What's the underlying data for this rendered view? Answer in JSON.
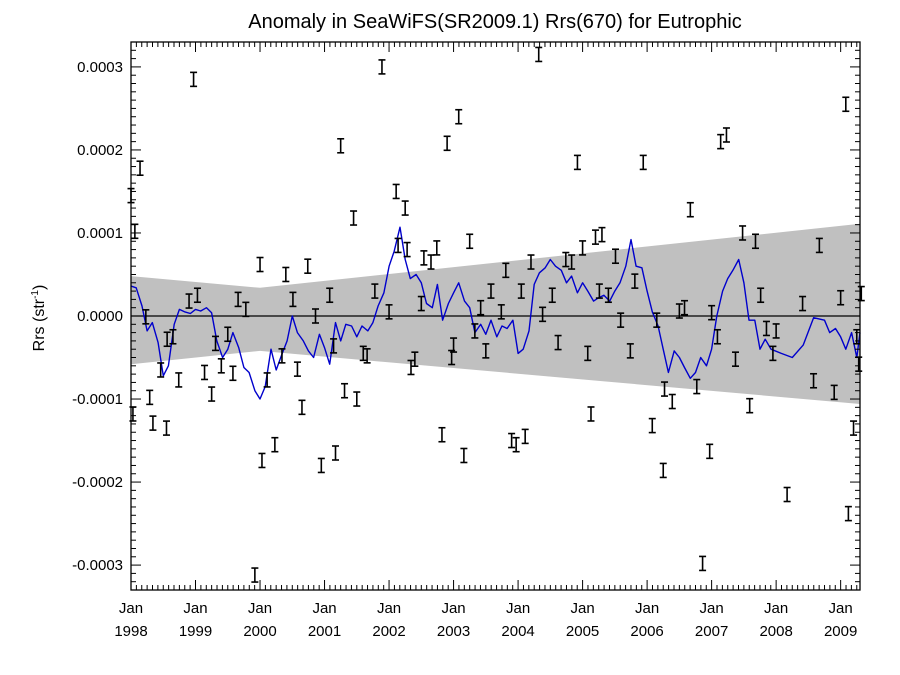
{
  "chart_data": {
    "type": "line",
    "title": "Anomaly in SeaWiFS(SR2009.1) Rrs(670) for Eutrophic",
    "ylabel": "Rrs (str",
    "ylabel_sup": "-1",
    "ylabel_close": ")",
    "xlim": [
      1998.0,
      2009.3
    ],
    "ylim": [
      -0.00033,
      0.00033
    ],
    "yticks": [
      {
        "value": 0.0003,
        "label": "0.0003"
      },
      {
        "value": 0.0002,
        "label": "0.0002"
      },
      {
        "value": 0.0001,
        "label": "0.0001"
      },
      {
        "value": 0.0,
        "label": "0.0000"
      },
      {
        "value": -0.0001,
        "label": "-0.0001"
      },
      {
        "value": -0.0002,
        "label": "-0.0002"
      },
      {
        "value": -0.0003,
        "label": "-0.0003"
      }
    ],
    "xticks": [
      {
        "value": 1998,
        "month": "Jan",
        "year": "1998"
      },
      {
        "value": 1999,
        "month": "Jan",
        "year": "1999"
      },
      {
        "value": 2000,
        "month": "Jan",
        "year": "2000"
      },
      {
        "value": 2001,
        "month": "Jan",
        "year": "2001"
      },
      {
        "value": 2002,
        "month": "Jan",
        "year": "2002"
      },
      {
        "value": 2003,
        "month": "Jan",
        "year": "2003"
      },
      {
        "value": 2004,
        "month": "Jan",
        "year": "2004"
      },
      {
        "value": 2005,
        "month": "Jan",
        "year": "2005"
      },
      {
        "value": 2006,
        "month": "Jan",
        "year": "2006"
      },
      {
        "value": 2007,
        "month": "Jan",
        "year": "2007"
      },
      {
        "value": 2008,
        "month": "Jan",
        "year": "2008"
      },
      {
        "value": 2009,
        "month": "Jan",
        "year": "2009"
      }
    ],
    "zero_line": 0.0,
    "band": {
      "color": "#c0c0c0",
      "upper": [
        [
          1998.0,
          4.8e-05
        ],
        [
          2000.0,
          3.4e-05
        ],
        [
          2009.3,
          0.000111
        ]
      ],
      "lower": [
        [
          1998.0,
          -5.8e-05
        ],
        [
          2000.0,
          -4.2e-05
        ],
        [
          2009.3,
          -0.000106
        ]
      ]
    },
    "series": [
      {
        "color": "#0000cc",
        "points": [
          [
            1998.0,
            3.6e-05
          ],
          [
            1998.08,
            3.4e-05
          ],
          [
            1998.17,
            1.2e-05
          ],
          [
            1998.25,
            -1.8e-05
          ],
          [
            1998.33,
            -8e-06
          ],
          [
            1998.42,
            -3.2e-05
          ],
          [
            1998.5,
            -7.2e-05
          ],
          [
            1998.58,
            -6e-05
          ],
          [
            1998.67,
            -1e-05
          ],
          [
            1998.75,
            8e-06
          ],
          [
            1998.83,
            5e-06
          ],
          [
            1998.92,
            3e-06
          ],
          [
            1999.0,
            8e-06
          ],
          [
            1999.08,
            6e-06
          ],
          [
            1999.17,
            1e-05
          ],
          [
            1999.25,
            4e-06
          ],
          [
            1999.33,
            -3e-05
          ],
          [
            1999.42,
            -5e-05
          ],
          [
            1999.5,
            -4e-05
          ],
          [
            1999.58,
            -2e-05
          ],
          [
            1999.67,
            -3.8e-05
          ],
          [
            1999.75,
            -6.2e-05
          ],
          [
            1999.83,
            -6.8e-05
          ],
          [
            1999.92,
            -9e-05
          ],
          [
            2000.0,
            -0.0001
          ],
          [
            2000.08,
            -8.5e-05
          ],
          [
            2000.17,
            -4e-05
          ],
          [
            2000.25,
            -6.5e-05
          ],
          [
            2000.33,
            -4.8e-05
          ],
          [
            2000.42,
            -3e-05
          ],
          [
            2000.5,
            0.0
          ],
          [
            2000.58,
            -2e-05
          ],
          [
            2000.67,
            -3e-05
          ],
          [
            2000.75,
            -4.2e-05
          ],
          [
            2000.83,
            -5e-05
          ],
          [
            2000.92,
            -2.2e-05
          ],
          [
            2001.0,
            -3.8e-05
          ],
          [
            2001.08,
            -5.8e-05
          ],
          [
            2001.17,
            -8e-06
          ],
          [
            2001.25,
            -3e-05
          ],
          [
            2001.33,
            -1e-05
          ],
          [
            2001.42,
            -1.2e-05
          ],
          [
            2001.5,
            -2.5e-05
          ],
          [
            2001.58,
            -1.2e-05
          ],
          [
            2001.67,
            -1.8e-05
          ],
          [
            2001.75,
            -8e-06
          ],
          [
            2001.83,
            1.2e-05
          ],
          [
            2001.92,
            2.8e-05
          ],
          [
            2002.0,
            6e-05
          ],
          [
            2002.08,
            7.8e-05
          ],
          [
            2002.17,
            0.000107
          ],
          [
            2002.25,
            6.8e-05
          ],
          [
            2002.33,
            4.5e-05
          ],
          [
            2002.42,
            5e-05
          ],
          [
            2002.5,
            4e-05
          ],
          [
            2002.58,
            1.5e-05
          ],
          [
            2002.67,
            1e-05
          ],
          [
            2002.75,
            3.8e-05
          ],
          [
            2002.83,
            -5e-06
          ],
          [
            2002.92,
            1.5e-05
          ],
          [
            2003.0,
            2.8e-05
          ],
          [
            2003.08,
            4e-05
          ],
          [
            2003.17,
            1.8e-05
          ],
          [
            2003.25,
            1e-05
          ],
          [
            2003.33,
            -2e-05
          ],
          [
            2003.42,
            -1e-05
          ],
          [
            2003.5,
            -2.2e-05
          ],
          [
            2003.58,
            -5e-06
          ],
          [
            2003.67,
            -2.5e-05
          ],
          [
            2003.75,
            -1.2e-05
          ],
          [
            2003.83,
            -1.5e-05
          ],
          [
            2003.92,
            -5e-06
          ],
          [
            2004.0,
            -4.5e-05
          ],
          [
            2004.08,
            -4e-05
          ],
          [
            2004.17,
            -1.8e-05
          ],
          [
            2004.25,
            3.8e-05
          ],
          [
            2004.33,
            5.2e-05
          ],
          [
            2004.42,
            5.8e-05
          ],
          [
            2004.5,
            6.8e-05
          ],
          [
            2004.58,
            6e-05
          ],
          [
            2004.67,
            5.5e-05
          ],
          [
            2004.75,
            4e-05
          ],
          [
            2004.83,
            4.8e-05
          ],
          [
            2004.92,
            2.8e-05
          ],
          [
            2005.0,
            4e-05
          ],
          [
            2005.08,
            3e-05
          ],
          [
            2005.17,
            1.8e-05
          ],
          [
            2005.25,
            2.2e-05
          ],
          [
            2005.33,
            2.5e-05
          ],
          [
            2005.42,
            1.8e-05
          ],
          [
            2005.5,
            3e-05
          ],
          [
            2005.58,
            4e-05
          ],
          [
            2005.67,
            6e-05
          ],
          [
            2005.75,
            9.2e-05
          ],
          [
            2005.83,
            6e-05
          ],
          [
            2005.92,
            5.8e-05
          ],
          [
            2006.0,
            3e-05
          ],
          [
            2006.08,
            5e-06
          ],
          [
            2006.17,
            -1.2e-05
          ],
          [
            2006.25,
            -4e-05
          ],
          [
            2006.33,
            -6.8e-05
          ],
          [
            2006.42,
            -4.2e-05
          ],
          [
            2006.5,
            -5e-05
          ],
          [
            2006.58,
            -6.2e-05
          ],
          [
            2006.67,
            -7.5e-05
          ],
          [
            2006.75,
            -6.8e-05
          ],
          [
            2006.83,
            -5e-05
          ],
          [
            2006.92,
            -6e-05
          ],
          [
            2007.0,
            -4e-05
          ],
          [
            2007.08,
            0.0
          ],
          [
            2007.17,
            3e-05
          ],
          [
            2007.25,
            4.5e-05
          ],
          [
            2007.33,
            5.5e-05
          ],
          [
            2007.42,
            6.8e-05
          ],
          [
            2007.5,
            4e-05
          ],
          [
            2007.58,
            -5e-06
          ],
          [
            2007.67,
            -5e-06
          ],
          [
            2007.75,
            -4e-05
          ],
          [
            2007.83,
            -2.8e-05
          ],
          [
            2007.92,
            -4e-05
          ],
          [
            2008.08,
            -4.5e-05
          ],
          [
            2008.25,
            -5e-05
          ],
          [
            2008.42,
            -3.5e-05
          ],
          [
            2008.58,
            -2e-06
          ],
          [
            2008.75,
            -5e-06
          ],
          [
            2008.83,
            -2e-05
          ],
          [
            2008.92,
            -1.5e-05
          ],
          [
            2009.0,
            -2.5e-05
          ],
          [
            2009.08,
            -4e-05
          ],
          [
            2009.17,
            -2e-05
          ],
          [
            2009.25,
            -5e-05
          ],
          [
            2009.3,
            -2e-05
          ]
        ]
      }
    ],
    "error_bars": [
      [
        1998.0,
        0.000145
      ],
      [
        1998.03,
        -0.000118
      ],
      [
        1998.06,
        0.000102
      ],
      [
        1998.14,
        0.000178
      ],
      [
        1998.23,
        -1e-06
      ],
      [
        1998.29,
        -9.8e-05
      ],
      [
        1998.34,
        -0.000129
      ],
      [
        1998.46,
        -6.5e-05
      ],
      [
        1998.55,
        -0.000135
      ],
      [
        1998.56,
        -2.8e-05
      ],
      [
        1998.65,
        -2.5e-05
      ],
      [
        1998.74,
        -7.7e-05
      ],
      [
        1998.9,
        1.8e-05
      ],
      [
        1998.97,
        0.000285
      ],
      [
        1999.03,
        2.5e-05
      ],
      [
        1999.14,
        -6.8e-05
      ],
      [
        1999.25,
        -9.4e-05
      ],
      [
        1999.31,
        -3.3e-05
      ],
      [
        1999.4,
        -6e-05
      ],
      [
        1999.5,
        -2.2e-05
      ],
      [
        1999.58,
        -6.9e-05
      ],
      [
        1999.66,
        2e-05
      ],
      [
        1999.78,
        8e-06
      ],
      [
        1999.92,
        -0.000312
      ],
      [
        2000.0,
        6.2e-05
      ],
      [
        2000.03,
        -0.000174
      ],
      [
        2000.11,
        -7.7e-05
      ],
      [
        2000.23,
        -0.000155
      ],
      [
        2000.34,
        -4.8e-05
      ],
      [
        2000.4,
        5e-05
      ],
      [
        2000.51,
        2e-05
      ],
      [
        2000.58,
        -6.4e-05
      ],
      [
        2000.65,
        -0.00011
      ],
      [
        2000.74,
        6e-05
      ],
      [
        2000.86,
        0.0
      ],
      [
        2000.95,
        -0.00018
      ],
      [
        2001.08,
        2.5e-05
      ],
      [
        2001.14,
        -3.6e-05
      ],
      [
        2001.17,
        -0.000165
      ],
      [
        2001.25,
        0.000205
      ],
      [
        2001.31,
        -9e-05
      ],
      [
        2001.45,
        0.000118
      ],
      [
        2001.5,
        -0.0001
      ],
      [
        2001.6,
        -4.5e-05
      ],
      [
        2001.66,
        -4.8e-05
      ],
      [
        2001.78,
        3e-05
      ],
      [
        2001.89,
        0.0003
      ],
      [
        2002.0,
        5e-06
      ],
      [
        2002.11,
        0.00015
      ],
      [
        2002.14,
        8.5e-05
      ],
      [
        2002.25,
        0.00013
      ],
      [
        2002.28,
        8e-05
      ],
      [
        2002.34,
        -6.2e-05
      ],
      [
        2002.4,
        -5.2e-05
      ],
      [
        2002.5,
        1.5e-05
      ],
      [
        2002.54,
        7e-05
      ],
      [
        2002.65,
        6.5e-05
      ],
      [
        2002.74,
        8.2e-05
      ],
      [
        2002.82,
        -0.000143
      ],
      [
        2002.9,
        0.000208
      ],
      [
        2002.97,
        -5e-05
      ],
      [
        2003.0,
        -3.5e-05
      ],
      [
        2003.08,
        0.00024
      ],
      [
        2003.16,
        -0.000168
      ],
      [
        2003.25,
        9e-05
      ],
      [
        2003.33,
        -1.8e-05
      ],
      [
        2003.42,
        1e-05
      ],
      [
        2003.5,
        -4.2e-05
      ],
      [
        2003.58,
        3e-05
      ],
      [
        2003.74,
        5e-06
      ],
      [
        2003.81,
        5.5e-05
      ],
      [
        2003.9,
        -0.00015
      ],
      [
        2003.97,
        -0.000155
      ],
      [
        2004.05,
        3e-05
      ],
      [
        2004.11,
        -0.000145
      ],
      [
        2004.2,
        6.5e-05
      ],
      [
        2004.32,
        0.000315
      ],
      [
        2004.38,
        2e-06
      ],
      [
        2004.53,
        2.5e-05
      ],
      [
        2004.62,
        -3.2e-05
      ],
      [
        2004.74,
        6.8e-05
      ],
      [
        2004.83,
        6.5e-05
      ],
      [
        2004.92,
        0.000185
      ],
      [
        2005.0,
        8.2e-05
      ],
      [
        2005.08,
        -4.5e-05
      ],
      [
        2005.13,
        -0.000118
      ],
      [
        2005.2,
        9.5e-05
      ],
      [
        2005.26,
        3e-05
      ],
      [
        2005.3,
        9.8e-05
      ],
      [
        2005.4,
        2.5e-05
      ],
      [
        2005.51,
        7.2e-05
      ],
      [
        2005.59,
        -5e-06
      ],
      [
        2005.74,
        -4.2e-05
      ],
      [
        2005.81,
        4.2e-05
      ],
      [
        2005.94,
        0.000185
      ],
      [
        2006.08,
        -0.000132
      ],
      [
        2006.15,
        -5e-06
      ],
      [
        2006.25,
        -0.000186
      ],
      [
        2006.27,
        -8.8e-05
      ],
      [
        2006.39,
        -0.000103
      ],
      [
        2006.5,
        6e-06
      ],
      [
        2006.58,
        1e-05
      ],
      [
        2006.67,
        0.000128
      ],
      [
        2006.77,
        -8.5e-05
      ],
      [
        2006.86,
        -0.000298
      ],
      [
        2006.97,
        -0.000163
      ],
      [
        2007.0,
        4e-06
      ],
      [
        2007.09,
        -2.5e-05
      ],
      [
        2007.14,
        0.00021
      ],
      [
        2007.23,
        0.000218
      ],
      [
        2007.37,
        -5.2e-05
      ],
      [
        2007.48,
        0.0001
      ],
      [
        2007.59,
        -0.000108
      ],
      [
        2007.68,
        9e-05
      ],
      [
        2007.76,
        2.5e-05
      ],
      [
        2007.85,
        -1.5e-05
      ],
      [
        2007.95,
        -4.5e-05
      ],
      [
        2008.0,
        -1.8e-05
      ],
      [
        2008.17,
        -0.000215
      ],
      [
        2008.41,
        1.5e-05
      ],
      [
        2008.58,
        -7.8e-05
      ],
      [
        2008.67,
        8.5e-05
      ],
      [
        2008.9,
        -9.2e-05
      ],
      [
        2009.0,
        2.2e-05
      ],
      [
        2009.08,
        0.000255
      ],
      [
        2009.12,
        -0.000238
      ],
      [
        2009.2,
        -0.000135
      ],
      [
        2009.25,
        -2.5e-05
      ],
      [
        2009.28,
        -5.8e-05
      ],
      [
        2009.32,
        2.7e-05
      ]
    ]
  }
}
